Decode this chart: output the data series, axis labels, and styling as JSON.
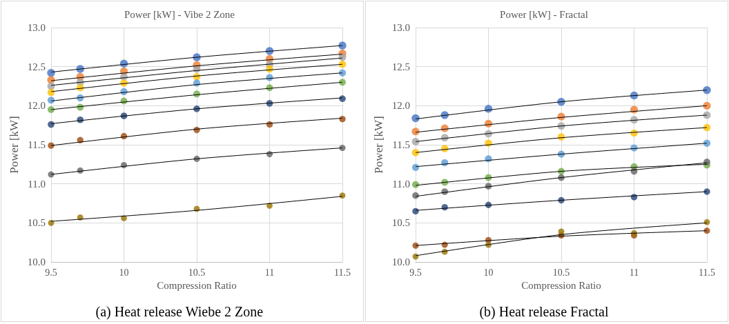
{
  "chart_data": [
    {
      "type": "scatter",
      "title": "Power [kW] - Vibe 2 Zone",
      "xlabel": "Compression Ratio",
      "ylabel": "Power [kW]",
      "annotations": [
        "(a) Heat release Wiebe 2 Zone"
      ],
      "xlim": [
        9.5,
        11.5
      ],
      "xticks": [
        9.5,
        10,
        10.5,
        11,
        11.5
      ],
      "ylim": [
        10,
        13
      ],
      "yticks": [
        {
          "value": 10,
          "label": "10.0"
        },
        10.5,
        {
          "value": 11,
          "label": "11.0"
        },
        11.5,
        {
          "value": 12,
          "label": "12.0"
        },
        12.5,
        {
          "value": 13,
          "label": "13.0"
        }
      ],
      "grid": true,
      "marker": "circle",
      "x": [
        9.5,
        9.7,
        10,
        10.5,
        11,
        11.5
      ],
      "series": [
        {
          "color": "#4472c4",
          "values": [
            12.42,
            12.47,
            12.54,
            12.62,
            12.7,
            12.77
          ]
        },
        {
          "color": "#ed7d31",
          "values": [
            12.33,
            12.37,
            12.44,
            12.52,
            12.6,
            12.67
          ]
        },
        {
          "color": "#a5a5a5",
          "values": [
            12.25,
            12.3,
            12.37,
            12.47,
            12.53,
            12.62
          ]
        },
        {
          "color": "#ffc000",
          "values": [
            12.17,
            12.23,
            12.29,
            12.37,
            12.47,
            12.53
          ]
        },
        {
          "color": "#5b9bd5",
          "values": [
            12.07,
            12.1,
            12.18,
            12.29,
            12.36,
            12.42
          ]
        },
        {
          "color": "#70ad47",
          "values": [
            11.95,
            11.98,
            12.06,
            12.15,
            12.23,
            12.3
          ]
        },
        {
          "color": "#264478",
          "values": [
            11.76,
            11.82,
            11.87,
            11.96,
            12.03,
            12.09
          ]
        },
        {
          "color": "#9e480e",
          "values": [
            11.49,
            11.56,
            11.61,
            11.69,
            11.76,
            11.83
          ]
        },
        {
          "color": "#636363",
          "values": [
            11.12,
            11.17,
            11.24,
            11.32,
            11.38,
            11.46
          ]
        },
        {
          "color": "#997300",
          "values": [
            10.5,
            10.57,
            10.56,
            10.68,
            10.72,
            10.85
          ]
        },
        {
          "type": "line",
          "marker": "none",
          "color": "#000000",
          "x": [
            9.5,
            10.5,
            11.5
          ],
          "values": [
            12.43,
            12.62,
            12.77
          ]
        },
        {
          "type": "line",
          "marker": "none",
          "color": "#000000",
          "x": [
            9.5,
            10.5,
            11.5
          ],
          "values": [
            12.32,
            12.51,
            12.66
          ]
        },
        {
          "type": "line",
          "marker": "none",
          "color": "#000000",
          "x": [
            9.5,
            10.5,
            11.5
          ],
          "values": [
            12.26,
            12.45,
            12.61
          ]
        },
        {
          "type": "line",
          "marker": "none",
          "color": "#000000",
          "x": [
            9.5,
            10.5,
            11.5
          ],
          "values": [
            12.18,
            12.38,
            12.53
          ]
        },
        {
          "type": "line",
          "marker": "none",
          "color": "#000000",
          "x": [
            9.5,
            10.5,
            11.5
          ],
          "values": [
            12.06,
            12.27,
            12.42
          ]
        },
        {
          "type": "line",
          "marker": "none",
          "color": "#000000",
          "x": [
            9.5,
            10.5,
            11.5
          ],
          "values": [
            11.95,
            12.14,
            12.3
          ]
        },
        {
          "type": "line",
          "marker": "none",
          "color": "#000000",
          "x": [
            9.5,
            10.5,
            11.5
          ],
          "values": [
            11.77,
            11.96,
            12.1
          ]
        },
        {
          "type": "line",
          "marker": "none",
          "color": "#000000",
          "x": [
            9.5,
            10.5,
            11.5
          ],
          "values": [
            11.49,
            11.7,
            11.84
          ]
        },
        {
          "type": "line",
          "marker": "none",
          "color": "#000000",
          "x": [
            9.5,
            10.5,
            11.5
          ],
          "values": [
            11.12,
            11.32,
            11.46
          ]
        },
        {
          "type": "line",
          "marker": "none",
          "color": "#000000",
          "x": [
            9.5,
            10.5,
            11.5
          ],
          "values": [
            10.52,
            10.66,
            10.84
          ]
        }
      ]
    },
    {
      "type": "scatter",
      "title": "Power [kW] - Fractal",
      "xlabel": "Compression Ratio",
      "ylabel": "Power [kW]",
      "annotations": [
        "(b) Heat release Fractal"
      ],
      "xlim": [
        9.5,
        11.5
      ],
      "xticks": [
        9.5,
        10,
        10.5,
        11,
        11.5
      ],
      "ylim": [
        10,
        13
      ],
      "yticks": [
        {
          "value": 10,
          "label": "10.0"
        },
        10.5,
        {
          "value": 11,
          "label": "11.0"
        },
        11.5,
        {
          "value": 12,
          "label": "12.0"
        },
        12.5,
        {
          "value": 13,
          "label": "13.0"
        }
      ],
      "grid": true,
      "marker": "circle",
      "x": [
        9.5,
        9.7,
        10,
        10.5,
        11,
        11.5
      ],
      "series": [
        {
          "color": "#4472c4",
          "values": [
            11.84,
            11.88,
            11.96,
            12.05,
            12.13,
            12.2
          ]
        },
        {
          "color": "#ed7d31",
          "values": [
            11.67,
            11.71,
            11.77,
            11.86,
            11.95,
            12.0
          ]
        },
        {
          "color": "#a5a5a5",
          "values": [
            11.54,
            11.59,
            11.64,
            11.74,
            11.82,
            11.88
          ]
        },
        {
          "color": "#ffc000",
          "values": [
            11.4,
            11.45,
            11.52,
            11.6,
            11.65,
            11.72
          ]
        },
        {
          "color": "#5b9bd5",
          "values": [
            11.21,
            11.27,
            11.32,
            11.38,
            11.46,
            11.52
          ]
        },
        {
          "color": "#70ad47",
          "values": [
            10.99,
            11.02,
            11.08,
            11.16,
            11.22,
            11.24
          ]
        },
        {
          "color": "#636363",
          "values": [
            10.85,
            10.9,
            10.97,
            11.08,
            11.16,
            11.28
          ]
        },
        {
          "color": "#264478",
          "values": [
            10.65,
            10.7,
            10.73,
            10.79,
            10.83,
            10.9
          ]
        },
        {
          "color": "#9e480e",
          "values": [
            10.21,
            10.22,
            10.28,
            10.34,
            10.34,
            10.4
          ]
        },
        {
          "color": "#997300",
          "values": [
            10.07,
            10.13,
            10.22,
            10.39,
            10.37,
            10.51
          ]
        },
        {
          "type": "line",
          "marker": "none",
          "color": "#000000",
          "x": [
            9.5,
            10.5,
            11.5
          ],
          "values": [
            11.83,
            12.05,
            12.2
          ]
        },
        {
          "type": "line",
          "marker": "none",
          "color": "#000000",
          "x": [
            9.5,
            10.5,
            11.5
          ],
          "values": [
            11.66,
            11.85,
            12.0
          ]
        },
        {
          "type": "line",
          "marker": "none",
          "color": "#000000",
          "x": [
            9.5,
            10.5,
            11.5
          ],
          "values": [
            11.54,
            11.74,
            11.88
          ]
        },
        {
          "type": "line",
          "marker": "none",
          "color": "#000000",
          "x": [
            9.5,
            10.5,
            11.5
          ],
          "values": [
            11.4,
            11.59,
            11.72
          ]
        },
        {
          "type": "line",
          "marker": "none",
          "color": "#000000",
          "x": [
            9.5,
            10.5,
            11.5
          ],
          "values": [
            11.22,
            11.38,
            11.52
          ]
        },
        {
          "type": "line",
          "marker": "none",
          "color": "#000000",
          "x": [
            9.5,
            10.5,
            11.5
          ],
          "values": [
            10.98,
            11.16,
            11.25
          ]
        },
        {
          "type": "line",
          "marker": "none",
          "color": "#000000",
          "x": [
            9.5,
            10.5,
            11.5
          ],
          "values": [
            10.84,
            11.08,
            11.27
          ]
        },
        {
          "type": "line",
          "marker": "none",
          "color": "#000000",
          "x": [
            9.5,
            10.5,
            11.5
          ],
          "values": [
            10.66,
            10.79,
            10.9
          ]
        },
        {
          "type": "line",
          "marker": "none",
          "color": "#000000",
          "x": [
            9.5,
            10.5,
            11.5
          ],
          "values": [
            10.21,
            10.33,
            10.4
          ]
        },
        {
          "type": "line",
          "marker": "none",
          "color": "#000000",
          "x": [
            9.5,
            10.5,
            11.5
          ],
          "values": [
            10.08,
            10.35,
            10.5
          ]
        }
      ]
    }
  ]
}
